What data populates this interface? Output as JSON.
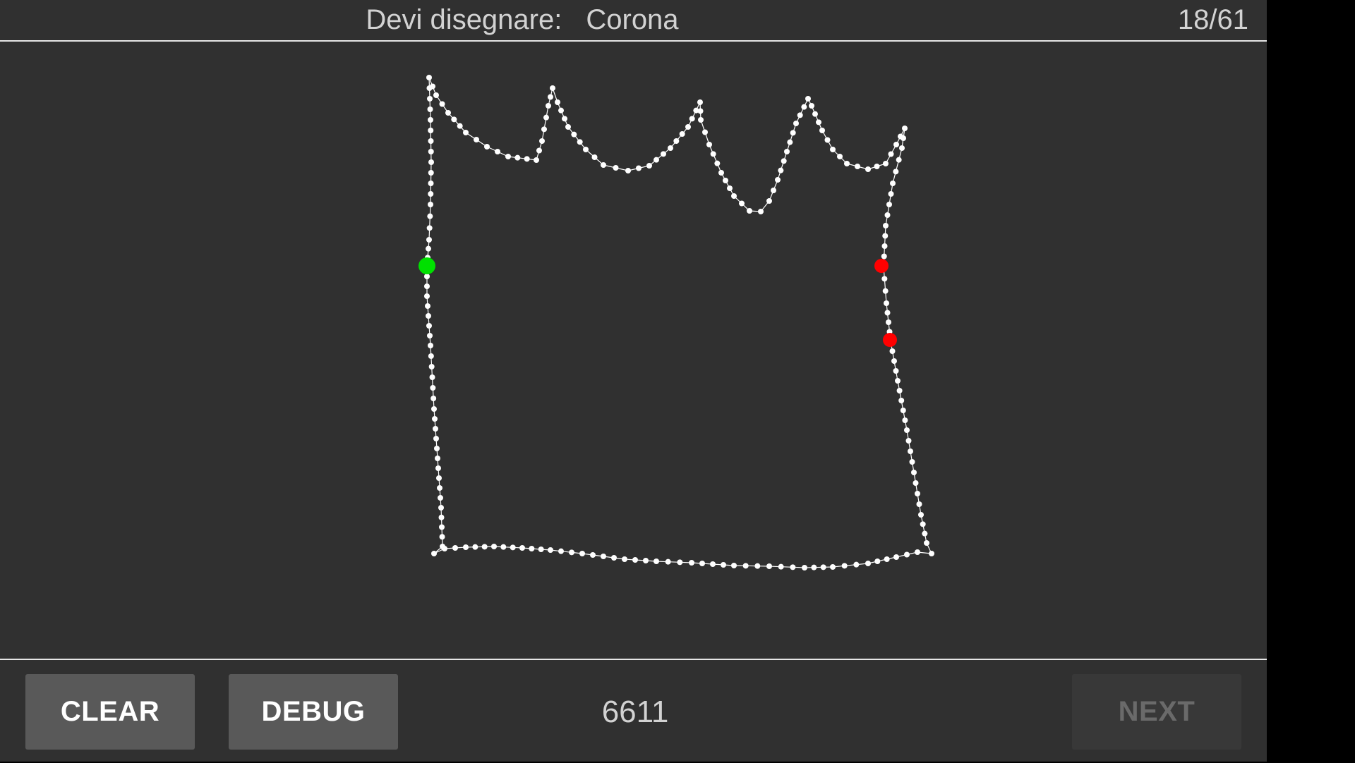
{
  "header": {
    "prompt_label": "Devi disegnare:",
    "target_word": "Corona",
    "progress": "18/61"
  },
  "footer": {
    "clear_label": "CLEAR",
    "debug_label": "DEBUG",
    "score": "6611",
    "next_label": "NEXT",
    "next_enabled": false
  },
  "colors": {
    "background": "#303030",
    "stroke": "#ffffff",
    "start_marker": "#00e000",
    "end_marker": "#ff0000"
  }
}
